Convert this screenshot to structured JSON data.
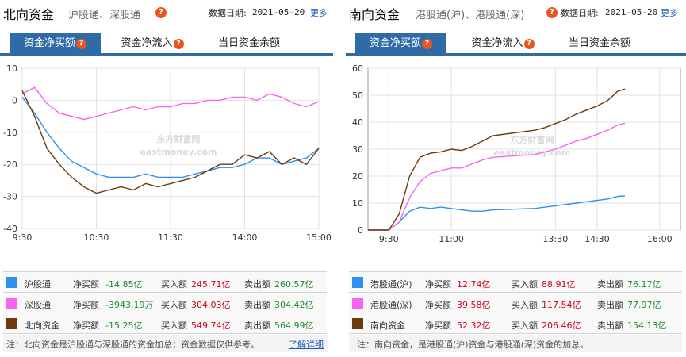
{
  "north": {
    "title": "北向资金",
    "subtitle": "沪股通、深股通",
    "date_label": "数据日期:",
    "date_value": "2021-05-20",
    "more": "更多",
    "tabs": [
      "资金净买额",
      "资金净流入",
      "当日资金余额"
    ],
    "legend": [
      {
        "name": "沪股通",
        "net_label": "净买额",
        "net": "-14.85亿",
        "buy_label": "买入额",
        "buy": "245.71亿",
        "sell_label": "卖出额",
        "sell": "260.57亿",
        "color": "#2f8ff0"
      },
      {
        "name": "深股通",
        "net_label": "净买额",
        "net": "-3943.19万",
        "buy_label": "买入额",
        "buy": "304.03亿",
        "sell_label": "卖出额",
        "sell": "304.42亿",
        "color": "#f566f0"
      },
      {
        "name": "北向资金",
        "net_label": "净买额",
        "net": "-15.25亿",
        "buy_label": "买入额",
        "buy": "549.74亿",
        "sell_label": "卖出额",
        "sell": "564.99亿",
        "color": "#6b3a0f"
      }
    ],
    "note": "注：北向资金是沪股通与深股通的资金加总；资金数据仅供参考。",
    "note_link": "了解详细"
  },
  "south": {
    "title": "南向资金",
    "subtitle": "港股通(沪)、港股通(深)",
    "date_label": "数据日期:",
    "date_value": "2021-05-20",
    "more": "更多",
    "tabs": [
      "资金净买额",
      "资金净流入",
      "当日资金余额"
    ],
    "legend": [
      {
        "name": "港股通(沪)",
        "net_label": "净买额",
        "net": "12.74亿",
        "buy_label": "买入额",
        "buy": "88.91亿",
        "sell_label": "卖出额",
        "sell": "76.17亿",
        "color": "#2f8ff0"
      },
      {
        "name": "港股通(深)",
        "net_label": "净买额",
        "net": "39.58亿",
        "buy_label": "买入额",
        "buy": "117.54亿",
        "sell_label": "卖出额",
        "sell": "77.97亿",
        "color": "#f566f0"
      },
      {
        "name": "南向资金",
        "net_label": "净买额",
        "net": "52.32亿",
        "buy_label": "买入额",
        "buy": "206.46亿",
        "sell_label": "卖出额",
        "sell": "154.13亿",
        "color": "#6b3a0f"
      }
    ],
    "note": "注：南向资金，是港股通(沪)资金与港股通(深)资金的加总。"
  },
  "watermark": {
    "cn": "东方财富网",
    "en": "eastmoney.com"
  },
  "chart_data": [
    {
      "type": "line",
      "x_ticks": [
        "9:30",
        "10:30",
        "11:30",
        "14:00",
        "15:00"
      ],
      "x": [
        "9:30",
        "9:40",
        "9:50",
        "10:00",
        "10:10",
        "10:20",
        "10:30",
        "10:40",
        "10:50",
        "11:00",
        "11:10",
        "11:20",
        "11:30",
        "13:10",
        "13:20",
        "13:30",
        "13:40",
        "13:50",
        "14:00",
        "14:10",
        "14:20",
        "14:30",
        "14:40",
        "14:50",
        "15:00"
      ],
      "ylim": [
        -40,
        10
      ],
      "yticks": [
        10,
        0,
        -10,
        -20,
        -30,
        -40
      ],
      "grid": true,
      "series": [
        {
          "name": "沪股通",
          "values": [
            1,
            -4,
            -10,
            -15,
            -19,
            -21,
            -23,
            -24,
            -24,
            -24,
            -23,
            -24,
            -24,
            -24,
            -23,
            -22,
            -21,
            -21,
            -20,
            -18,
            -18,
            -20,
            -19,
            -18,
            -15
          ]
        },
        {
          "name": "深股通",
          "values": [
            2,
            4,
            -1,
            -4,
            -5,
            -6,
            -5,
            -4,
            -3,
            -2,
            -3,
            -2,
            -2,
            -1,
            -1,
            0,
            0,
            1,
            1,
            0,
            2,
            1,
            -1,
            -2,
            -0.4
          ]
        },
        {
          "name": "北向资金",
          "values": [
            3,
            -5,
            -15,
            -20,
            -24,
            -27,
            -29,
            -28,
            -27,
            -28,
            -26,
            -27,
            -26,
            -25,
            -24,
            -22,
            -20,
            -20,
            -17,
            -18,
            -16,
            -20,
            -18,
            -20,
            -15
          ]
        }
      ]
    },
    {
      "type": "line",
      "x_ticks": [
        "9:30",
        "11:00",
        "13:30",
        "14:30",
        "16:00"
      ],
      "x": [
        "9:00",
        "9:15",
        "9:30",
        "9:45",
        "10:00",
        "10:15",
        "10:30",
        "10:45",
        "11:00",
        "11:15",
        "11:30",
        "11:45",
        "12:00",
        "13:00",
        "13:15",
        "13:30",
        "13:45",
        "14:00",
        "14:15",
        "14:30",
        "14:45",
        "15:00",
        "15:10"
      ],
      "ylim": [
        0,
        60
      ],
      "yticks": [
        0,
        10,
        20,
        30,
        40,
        50,
        60
      ],
      "grid": true,
      "series": [
        {
          "name": "港股通(沪)",
          "values": [
            0,
            0,
            0,
            3,
            7,
            8.5,
            8,
            8.5,
            8,
            7.5,
            7,
            7,
            7.5,
            8,
            8.5,
            9,
            9.5,
            10,
            10.5,
            11,
            11.5,
            12.5,
            12.7
          ]
        },
        {
          "name": "港股通(深)",
          "values": [
            0,
            0,
            0,
            3,
            12,
            18,
            21,
            22,
            23,
            23,
            24.5,
            26,
            27,
            28,
            29,
            30,
            31.5,
            33,
            34,
            35.5,
            37,
            39,
            39.6
          ]
        },
        {
          "name": "南向资金",
          "values": [
            0,
            0,
            0,
            6,
            20,
            27,
            28.5,
            29,
            30,
            29.5,
            31,
            33,
            35,
            37,
            38,
            39.5,
            41,
            43,
            44.5,
            46,
            48,
            51.5,
            52.3
          ]
        }
      ]
    }
  ]
}
